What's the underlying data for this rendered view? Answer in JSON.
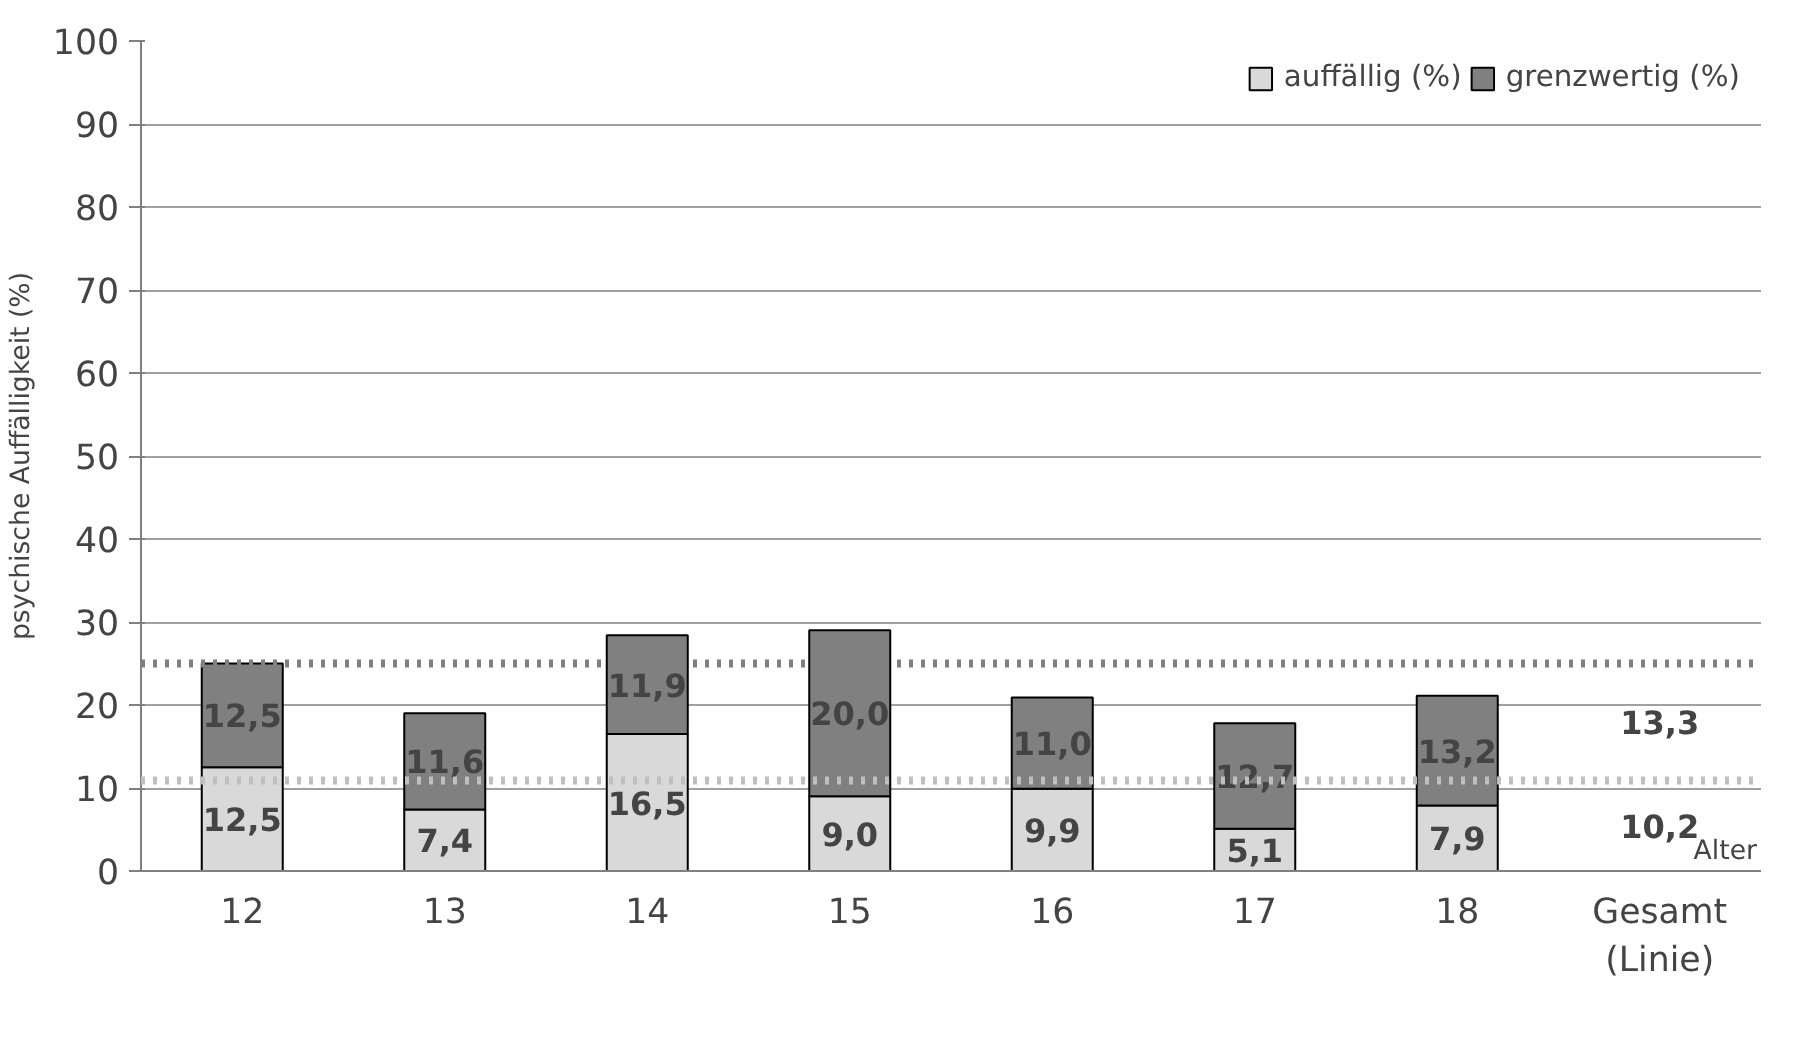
{
  "chart_data": {
    "type": "bar",
    "stacked": true,
    "ylabel": "psychische Auffälligkeit (%)",
    "xlabel": "Alter",
    "categories": [
      "12",
      "13",
      "14",
      "15",
      "16",
      "17",
      "18",
      "Gesamt (Linie)"
    ],
    "series": [
      {
        "name": "auffällig (%)",
        "color": "#d9d9d9",
        "values": [
          12.5,
          7.4,
          16.5,
          9.0,
          9.9,
          5.1,
          7.9,
          null
        ],
        "value_labels": [
          "12,5",
          "7,4",
          "16,5",
          "9,0",
          "9,9",
          "5,1",
          "7,9",
          null
        ]
      },
      {
        "name": "grenzwertig (%)",
        "color": "#808080",
        "values": [
          12.5,
          11.6,
          11.9,
          20.0,
          11.0,
          12.7,
          13.2,
          null
        ],
        "value_labels": [
          "12,5",
          "11,6",
          "11,9",
          "20,0",
          "11,0",
          "12,7",
          "13,2",
          null
        ]
      }
    ],
    "ref_lines": [
      {
        "axis": "y",
        "value": 10.9,
        "color": "#bfbfbf",
        "line_style": "dotted"
      },
      {
        "axis": "y",
        "value": 25,
        "color": "#808080",
        "line_style": "dotted"
      }
    ],
    "annotations": [
      "10,2",
      "13,3"
    ],
    "ylim": [
      0,
      100
    ],
    "yticks": [
      0,
      10,
      20,
      30,
      40,
      50,
      60,
      70,
      80,
      90,
      100
    ],
    "grid": "y",
    "legend": "top right"
  }
}
